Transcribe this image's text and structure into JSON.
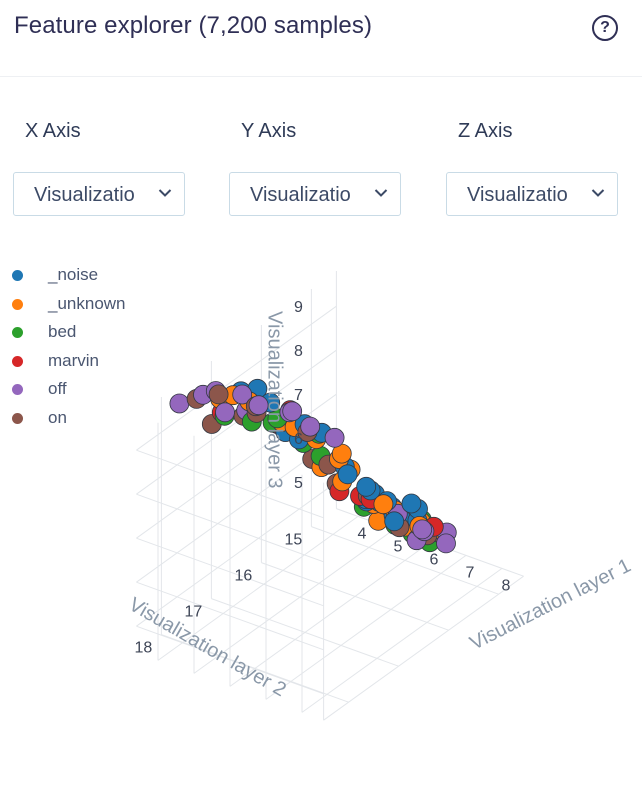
{
  "header": {
    "title": "Feature explorer (7,200 samples)",
    "help_icon": "help-circle-icon",
    "help_glyph": "?"
  },
  "controls": [
    {
      "label": "X Axis",
      "value": "Visualizatio"
    },
    {
      "label": "Y Axis",
      "value": "Visualizatio"
    },
    {
      "label": "Z Axis",
      "value": "Visualizatio"
    }
  ],
  "legend": [
    {
      "name": "_noise",
      "color": "#1f77b4"
    },
    {
      "name": "_unknown",
      "color": "#ff7f0e"
    },
    {
      "name": "bed",
      "color": "#2ca02c"
    },
    {
      "name": "marvin",
      "color": "#d62728"
    },
    {
      "name": "off",
      "color": "#9467bd"
    },
    {
      "name": "on",
      "color": "#8c564b"
    }
  ],
  "chart_data": {
    "type": "scatter",
    "projection": "3d",
    "xlabel": "Visualization layer 1",
    "ylabel": "Visualization layer 2",
    "zlabel": "Visualization layer 3",
    "x_ticks": [
      "4",
      "5",
      "6",
      "7",
      "8"
    ],
    "y_ticks": [
      "15",
      "16",
      "17",
      "18"
    ],
    "z_ticks": [
      "5",
      "6",
      "7",
      "8",
      "9"
    ],
    "xlim": [
      3.4,
      8.6
    ],
    "ylim": [
      14.5,
      18.5
    ],
    "zlim": [
      4.4,
      9.8
    ],
    "grid": true,
    "legend_position": "top-left",
    "series": [
      {
        "name": "_noise",
        "color": "#1f77b4",
        "points": [
          [
            5.6,
            15.4,
            6.2
          ],
          [
            6.0,
            15.6,
            6.4
          ],
          [
            6.4,
            15.8,
            6.5
          ],
          [
            5.2,
            15.2,
            6.0
          ],
          [
            6.8,
            15.9,
            6.6
          ],
          [
            5.5,
            15.0,
            5.6
          ],
          [
            6.2,
            15.4,
            6.0
          ],
          [
            7.0,
            15.8,
            6.3
          ],
          [
            4.8,
            15.8,
            7.6
          ],
          [
            4.2,
            16.4,
            8.6
          ],
          [
            4.4,
            16.8,
            9.3
          ],
          [
            5.0,
            16.4,
            8.0
          ],
          [
            5.8,
            16.0,
            7.2
          ],
          [
            6.6,
            16.2,
            6.9
          ],
          [
            7.2,
            16.0,
            6.5
          ],
          [
            5.9,
            14.8,
            5.5
          ],
          [
            6.5,
            15.1,
            5.8
          ],
          [
            4.6,
            16.0,
            7.9
          ],
          [
            5.3,
            15.7,
            6.9
          ],
          [
            6.1,
            15.3,
            5.7
          ],
          [
            4.9,
            16.6,
            8.3
          ],
          [
            5.7,
            15.0,
            5.2
          ],
          [
            6.9,
            15.4,
            5.9
          ],
          [
            4.5,
            17.2,
            9.6
          ],
          [
            7.4,
            15.6,
            6.0
          ],
          [
            5.1,
            15.5,
            6.5
          ],
          [
            6.3,
            16.0,
            6.7
          ]
        ]
      },
      {
        "name": "_unknown",
        "color": "#ff7f0e",
        "points": [
          [
            4.4,
            16.8,
            8.9
          ],
          [
            4.8,
            16.6,
            8.5
          ],
          [
            5.2,
            16.2,
            7.9
          ],
          [
            6.8,
            16.2,
            6.9
          ],
          [
            7.2,
            16.4,
            6.8
          ],
          [
            7.4,
            16.0,
            6.4
          ],
          [
            5.0,
            15.6,
            6.9
          ],
          [
            6.0,
            15.2,
            5.7
          ],
          [
            7.0,
            15.4,
            5.9
          ],
          [
            4.0,
            17.0,
            9.2
          ],
          [
            4.6,
            16.2,
            8.0
          ],
          [
            5.6,
            15.8,
            7.0
          ],
          [
            6.6,
            15.6,
            6.1
          ],
          [
            7.6,
            15.9,
            6.1
          ],
          [
            5.4,
            15.0,
            5.5
          ],
          [
            4.2,
            17.4,
            9.5
          ],
          [
            6.2,
            16.4,
            7.4
          ],
          [
            4.8,
            15.4,
            6.8
          ],
          [
            6.4,
            15.0,
            5.3
          ],
          [
            3.9,
            16.6,
            8.7
          ],
          [
            7.1,
            15.2,
            5.6
          ],
          [
            5.9,
            16.6,
            7.8
          ]
        ]
      },
      {
        "name": "bed",
        "color": "#2ca02c",
        "points": [
          [
            4.8,
            17.2,
            9.0
          ],
          [
            5.2,
            16.8,
            8.6
          ],
          [
            5.4,
            16.6,
            8.2
          ],
          [
            7.4,
            16.2,
            6.6
          ],
          [
            7.6,
            16.0,
            6.3
          ],
          [
            5.0,
            16.0,
            7.8
          ],
          [
            4.6,
            17.6,
            9.4
          ],
          [
            5.6,
            16.4,
            7.8
          ],
          [
            7.8,
            15.8,
            6.0
          ],
          [
            4.4,
            16.4,
            8.3
          ],
          [
            7.3,
            15.6,
            6.2
          ],
          [
            5.1,
            17.0,
            8.9
          ],
          [
            6.8,
            16.4,
            7.0
          ]
        ]
      },
      {
        "name": "marvin",
        "color": "#d62728",
        "points": [
          [
            5.8,
            17.4,
            9.4
          ],
          [
            4.8,
            17.8,
            9.7
          ],
          [
            6.4,
            16.6,
            7.4
          ],
          [
            5.6,
            15.4,
            6.0
          ],
          [
            4.2,
            16.0,
            8.1
          ],
          [
            6.0,
            15.9,
            6.6
          ],
          [
            6.8,
            15.0,
            5.4
          ],
          [
            5.3,
            16.9,
            8.7
          ]
        ]
      },
      {
        "name": "off",
        "color": "#9467bd",
        "points": [
          [
            3.7,
            16.6,
            8.8
          ],
          [
            3.8,
            17.2,
            9.4
          ],
          [
            3.6,
            16.2,
            8.2
          ],
          [
            3.9,
            15.8,
            7.8
          ],
          [
            4.0,
            17.6,
            9.7
          ],
          [
            5.2,
            17.6,
            9.7
          ],
          [
            5.6,
            17.2,
            9.2
          ],
          [
            6.6,
            15.2,
            5.2
          ],
          [
            7.0,
            14.9,
            5.0
          ],
          [
            6.2,
            14.8,
            5.0
          ],
          [
            4.2,
            15.6,
            7.4
          ],
          [
            3.5,
            16.8,
            8.5
          ],
          [
            3.9,
            18.0,
            9.8
          ],
          [
            5.8,
            15.0,
            5.4
          ],
          [
            7.3,
            15.1,
            5.5
          ],
          [
            4.6,
            15.4,
            7.1
          ],
          [
            3.7,
            15.6,
            7.6
          ],
          [
            6.4,
            14.9,
            5.1
          ]
        ]
      },
      {
        "name": "on",
        "color": "#8c564b",
        "points": [
          [
            3.8,
            16.4,
            8.4
          ],
          [
            4.1,
            17.8,
            9.8
          ],
          [
            5.4,
            17.8,
            9.8
          ],
          [
            6.2,
            17.0,
            8.4
          ],
          [
            6.4,
            15.4,
            5.6
          ],
          [
            5.8,
            15.6,
            6.3
          ],
          [
            3.6,
            17.0,
            9.1
          ],
          [
            4.4,
            15.8,
            7.5
          ],
          [
            6.9,
            15.2,
            5.4
          ],
          [
            5.4,
            16.1,
            7.3
          ],
          [
            4.8,
            18.0,
            9.6
          ],
          [
            7.5,
            15.4,
            5.8
          ],
          [
            4.1,
            16.6,
            8.5
          ],
          [
            6.6,
            16.8,
            7.8
          ]
        ]
      }
    ]
  }
}
